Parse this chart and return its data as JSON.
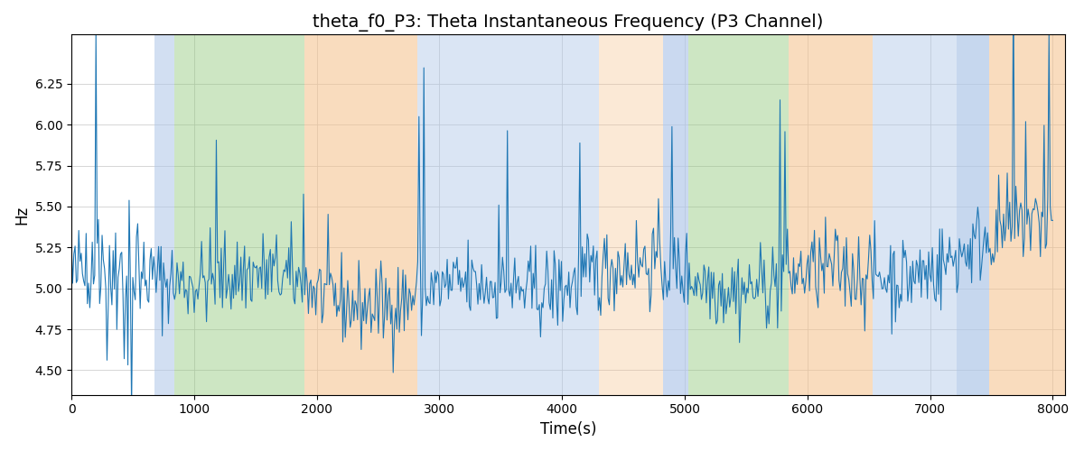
{
  "title": "theta_f0_P3: Theta Instantaneous Frequency (P3 Channel)",
  "xlabel": "Time(s)",
  "ylabel": "Hz",
  "xlim": [
    0,
    8100
  ],
  "ylim": [
    4.35,
    6.55
  ],
  "line_color": "#1f77b4",
  "line_width": 0.8,
  "bg_color": "#ffffff",
  "grid_color": "#cccccc",
  "bands": [
    {
      "xmin": 680,
      "xmax": 840,
      "color": "#aec6e8",
      "alpha": 0.55
    },
    {
      "xmin": 840,
      "xmax": 1900,
      "color": "#90c97a",
      "alpha": 0.45
    },
    {
      "xmin": 1900,
      "xmax": 2820,
      "color": "#f5c08a",
      "alpha": 0.55
    },
    {
      "xmin": 2820,
      "xmax": 4300,
      "color": "#aec6e8",
      "alpha": 0.45
    },
    {
      "xmin": 4300,
      "xmax": 4820,
      "color": "#f5c08a",
      "alpha": 0.35
    },
    {
      "xmin": 4820,
      "xmax": 5030,
      "color": "#aec6e8",
      "alpha": 0.65
    },
    {
      "xmin": 5030,
      "xmax": 5850,
      "color": "#90c97a",
      "alpha": 0.45
    },
    {
      "xmin": 5850,
      "xmax": 6530,
      "color": "#f5c08a",
      "alpha": 0.55
    },
    {
      "xmin": 6530,
      "xmax": 7220,
      "color": "#aec6e8",
      "alpha": 0.45
    },
    {
      "xmin": 7220,
      "xmax": 7480,
      "color": "#aec6e8",
      "alpha": 0.7
    },
    {
      "xmin": 7480,
      "xmax": 8100,
      "color": "#f5c08a",
      "alpha": 0.55
    }
  ],
  "seed": 42,
  "n_points": 800,
  "t_start": 0,
  "t_end": 8000,
  "base_freq": 5.02,
  "noise_std": 0.13,
  "title_fontsize": 14
}
